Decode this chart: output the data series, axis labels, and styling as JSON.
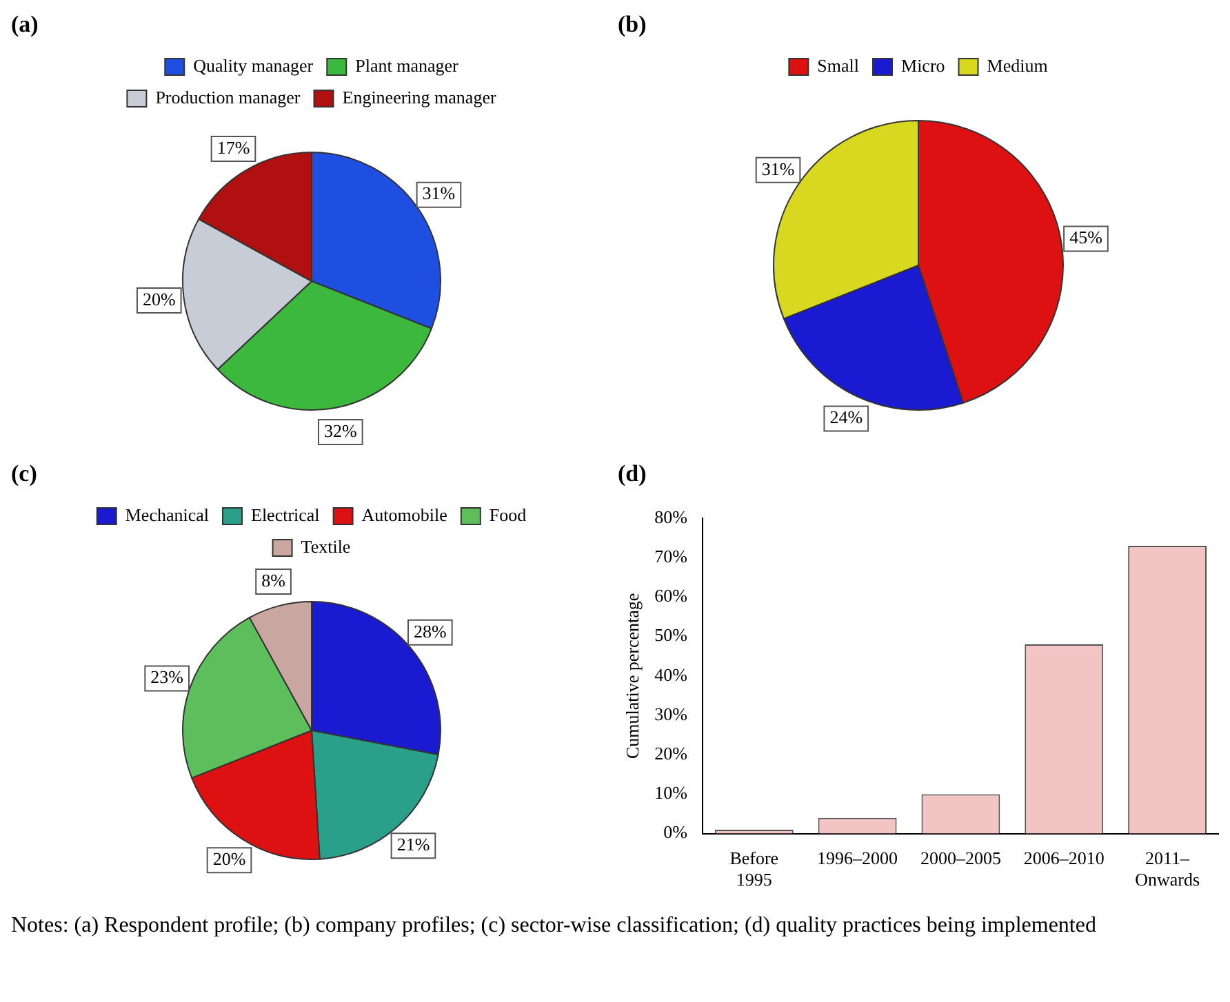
{
  "chart_data": [
    {
      "type": "pie",
      "title": "(a)",
      "legend": "top",
      "categories": [
        "Quality manager",
        "Plant manager",
        "Production manager",
        "Engineering manager"
      ],
      "values": [
        31,
        32,
        20,
        17
      ],
      "colors": [
        "#1f4fe0",
        "#3cb93c",
        "#c8ccd6",
        "#b01010"
      ],
      "value_labels": [
        "31%",
        "32%",
        "20%",
        "17%"
      ]
    },
    {
      "type": "pie",
      "title": "(b)",
      "legend": "top",
      "categories": [
        "Small",
        "Micro",
        "Medium"
      ],
      "values": [
        45,
        24,
        31
      ],
      "colors": [
        "#dd1111",
        "#1a1ad0",
        "#d8d820"
      ],
      "value_labels": [
        "45%",
        "24%",
        "31%"
      ]
    },
    {
      "type": "pie",
      "title": "(c)",
      "legend": "top",
      "categories": [
        "Mechanical",
        "Electrical",
        "Automobile",
        "Food",
        "Textile"
      ],
      "values": [
        28,
        21,
        20,
        23,
        8
      ],
      "colors": [
        "#1a1ad0",
        "#2a9f8a",
        "#dd1111",
        "#5cbf5c",
        "#c9a6a0"
      ],
      "value_labels": [
        "28%",
        "21%",
        "20%",
        "23%",
        "8%"
      ]
    },
    {
      "type": "bar",
      "title": "(d)",
      "ylabel": "Cumulative percentage",
      "categories": [
        "Before 1995",
        "1996–2000",
        "2000–2005",
        "2006–2010",
        "2011– Onwards"
      ],
      "values": [
        1,
        4,
        10,
        48,
        73
      ],
      "color": "#f2c4c4",
      "ylim": [
        0,
        80
      ],
      "yticks": [
        {
          "value": 0,
          "label": "0%"
        },
        {
          "value": 10,
          "label": "10%"
        },
        {
          "value": 20,
          "label": "20%"
        },
        {
          "value": 30,
          "label": "30%"
        },
        {
          "value": 40,
          "label": "40%"
        },
        {
          "value": 50,
          "label": "50%"
        },
        {
          "value": 60,
          "label": "60%"
        },
        {
          "value": 70,
          "label": "70%"
        },
        {
          "value": 80,
          "label": "80%"
        }
      ],
      "grid": false,
      "legend": false,
      "annotations": [
        "Notes: (a) Respondent profile; (b) company profiles; (c) sector-wise classification; (d) quality practices being implemented"
      ]
    }
  ]
}
